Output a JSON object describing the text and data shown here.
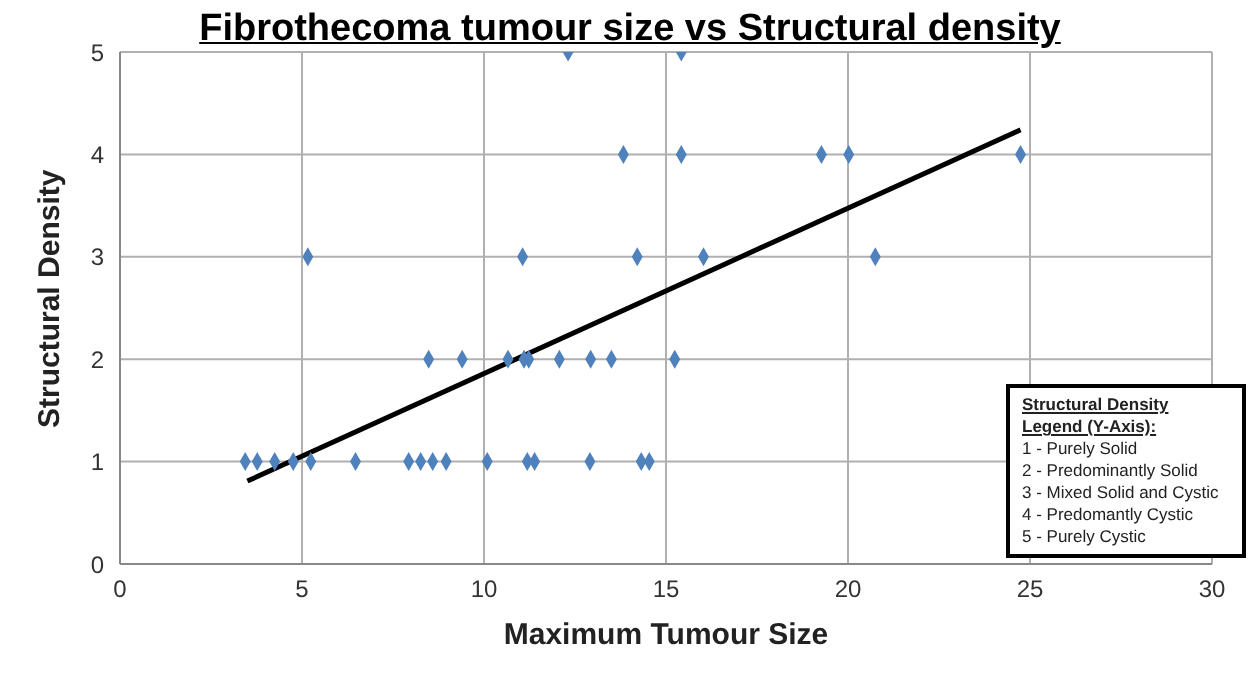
{
  "chart_data": {
    "type": "scatter",
    "title": "Fibrothecoma tumour size vs Structural density",
    "xlabel": "Maximum Tumour Size",
    "ylabel": "Structural Density",
    "xlim": [
      0,
      30
    ],
    "xticks": [
      0,
      5,
      10,
      15,
      20,
      25,
      30
    ],
    "ylim": [
      0,
      5
    ],
    "yticks": [
      0,
      1,
      2,
      3,
      4,
      5
    ],
    "grid": true,
    "series": [
      {
        "color": "#4f81bd",
        "marker": "diamond",
        "x": [
          3.44,
          3.77,
          4.25,
          4.76,
          5.24,
          6.47,
          7.93,
          8.26,
          8.59,
          8.96,
          10.09,
          11.19,
          11.39,
          12.91,
          14.32,
          14.54,
          8.48,
          9.4,
          10.66,
          11.1,
          11.23,
          12.07,
          12.93,
          13.5,
          15.24,
          5.16,
          11.06,
          14.21,
          16.03,
          20.75,
          13.83,
          15.42,
          19.27,
          20.02,
          24.74,
          12.31,
          15.42
        ],
        "values": [
          1,
          1,
          1,
          1,
          1,
          1,
          1,
          1,
          1,
          1,
          1,
          1,
          1,
          1,
          1,
          1,
          2,
          2,
          2,
          2,
          2,
          2,
          2,
          2,
          2,
          3,
          3,
          3,
          3,
          3,
          4,
          4,
          4,
          4,
          4,
          5,
          5
        ]
      },
      {
        "type": "line",
        "color": "#000000",
        "x": [
          3.5,
          24.74
        ],
        "values": [
          0.81,
          4.24
        ]
      }
    ],
    "annotations": [
      "Structural Density Legend (Y-Axis):",
      "1 - Purely Solid",
      "2 - Predominantly Solid",
      "3 - Mixed Solid and Cystic",
      "4 - Predomantly Cystic",
      "5 - Purely Cystic"
    ]
  }
}
